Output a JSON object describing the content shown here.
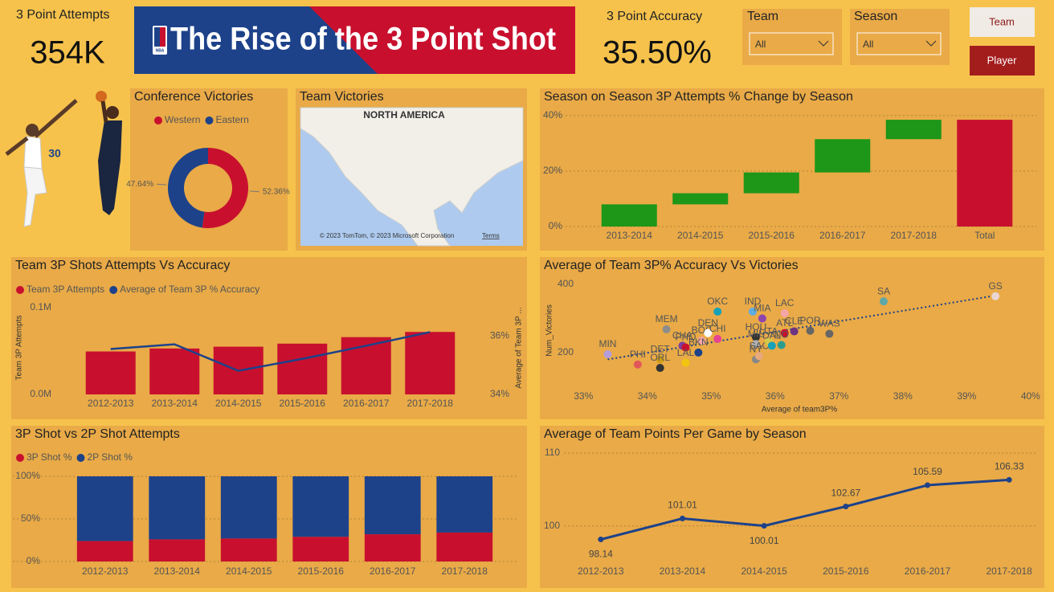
{
  "kpis": [
    {
      "label": "3 Point Attempts",
      "value": "354K"
    },
    {
      "label": "3 Point Accuracy",
      "value": "35.50%"
    }
  ],
  "banner": {
    "logo": "NBA",
    "title": "The Rise of the 3 Point Shot"
  },
  "slicers": [
    {
      "label": "Team",
      "selected": "All"
    },
    {
      "label": "Season",
      "selected": "All"
    }
  ],
  "buttons": [
    "Team",
    "Player"
  ],
  "chart_data": [
    {
      "type": "donut",
      "title": "Conference Victories",
      "categories": [
        "Western",
        "Eastern"
      ],
      "values": [
        52.36,
        47.64
      ],
      "value_labels": [
        "52.36%",
        "47.64%"
      ],
      "colors": [
        "#c8102e",
        "#1d428a"
      ],
      "legend": "top"
    },
    {
      "type": "map",
      "title": "Team Victories",
      "region_label": "NORTH AMERICA",
      "attribution": "© 2023 TomTom, © 2023 Microsoft Corporation",
      "terms": "Terms"
    },
    {
      "type": "waterfall",
      "title": "Season on Season 3P Attempts % Change by Season",
      "categories": [
        "2013-2014",
        "2014-2015",
        "2015-2016",
        "2016-2017",
        "2017-2018",
        "Total"
      ],
      "values": [
        8,
        4,
        7.5,
        12,
        7,
        38.5
      ],
      "increase_color": "#1e9618",
      "total_color": "#c8102e",
      "ylim": [
        0,
        42
      ],
      "yticks": [
        {
          "value": 0,
          "label": "0%"
        },
        {
          "value": 20,
          "label": "20%"
        },
        {
          "value": 40,
          "label": "40%"
        }
      ],
      "grid": true
    },
    {
      "type": "bar_line",
      "title": "Team 3P Shots Attempts Vs Accuracy",
      "categories": [
        "2012-2013",
        "2013-2014",
        "2014-2015",
        "2015-2016",
        "2016-2017",
        "2017-2018"
      ],
      "series": [
        {
          "name": "Team 3P Attempts",
          "color": "#c8102e",
          "values": [
            49500,
            52900,
            55000,
            58500,
            66000,
            72000
          ]
        },
        {
          "name": "Average of Team 3P % Accuracy",
          "color": "#1d428a",
          "values": [
            35.56,
            35.72,
            34.81,
            35.22,
            35.67,
            36.14
          ],
          "axis": "y2"
        }
      ],
      "ylabel": "Team 3P Attempts",
      "y2label": "Average of Team 3P ...",
      "ylim": [
        0,
        107400
      ],
      "yticks": [
        {
          "value": 0,
          "label": "0.0M"
        },
        {
          "value": 100000,
          "label": "0.1M"
        }
      ],
      "y2lim": [
        34,
        37.2
      ],
      "y2ticks": [
        {
          "value": 34,
          "label": "34%"
        },
        {
          "value": 36,
          "label": "36%"
        }
      ],
      "legend": "top-left",
      "grid": false
    },
    {
      "type": "scatter",
      "title": "Average of Team 3P% Accuracy Vs Victories",
      "xlabel": "Average of team3P%",
      "ylabel": "Num_Victories",
      "labels": [
        "MIN",
        "PHI",
        "DET",
        "ORL",
        "MEM",
        "CHA",
        "PHO",
        "BOS",
        "LAL",
        "BKN",
        "DEN",
        "CHI",
        "OKC",
        "IND",
        "MIA",
        "HOU",
        "MIL",
        "NY",
        "SAC",
        "UTA",
        "DAL",
        "LAC",
        "ATL",
        "CLE",
        "NO",
        "POR",
        "WAS",
        "SA",
        "GS"
      ],
      "x": [
        33.38,
        33.85,
        34.2,
        34.2,
        34.3,
        34.55,
        34.6,
        34.85,
        34.6,
        34.8,
        34.95,
        35.1,
        35.1,
        35.65,
        35.8,
        35.7,
        35.7,
        35.7,
        35.75,
        35.9,
        35.95,
        36.15,
        36.15,
        36.3,
        36.1,
        36.55,
        36.85,
        37.7,
        39.45
      ],
      "y": [
        195,
        165,
        180,
        155,
        268,
        220,
        215,
        235,
        170,
        200,
        257,
        240,
        320,
        320,
        300,
        245,
        225,
        180,
        190,
        232,
        220,
        315,
        257,
        262,
        222,
        264,
        255,
        350,
        365
      ],
      "colors": [
        "#b39ddb",
        "#e15759",
        "#d4a017",
        "#333333",
        "#8c8c8c",
        "#7b3fa0",
        "#c8102e",
        "#f4a6a6",
        "#f1c40f",
        "#1d428a",
        "#ffffff",
        "#e84393",
        "#17a2b8",
        "#5dade2",
        "#8e44ad",
        "#333333",
        "#b0b0b0",
        "#888888",
        "#e8a87c",
        "#d4c84a",
        "#17a2b8",
        "#f4a6a6",
        "#c8102e",
        "#6c3483",
        "#2a9d8f",
        "#666666",
        "#666666",
        "#5fa8a8",
        "#ead5d5"
      ],
      "trendline": {
        "x": [
          33.38,
          39.45
        ],
        "y": [
          180,
          367
        ],
        "color": "#1d428a"
      },
      "xlim": [
        32.67,
        40.09
      ],
      "xticks": [
        {
          "value": 33,
          "label": "33%"
        },
        {
          "value": 34,
          "label": "34%"
        },
        {
          "value": 35,
          "label": "35%"
        },
        {
          "value": 36,
          "label": "36%"
        },
        {
          "value": 37,
          "label": "37%"
        },
        {
          "value": 38,
          "label": "38%"
        },
        {
          "value": 39,
          "label": "39%"
        },
        {
          "value": 40,
          "label": "40%"
        }
      ],
      "ylim": [
        108,
        421
      ],
      "yticks": [
        200,
        400
      ],
      "grid": false
    },
    {
      "type": "stacked_bar",
      "title": "3P Shot vs 2P Shot Attempts",
      "categories": [
        "2012-2013",
        "2013-2014",
        "2014-2015",
        "2015-2016",
        "2016-2017",
        "2017-2018"
      ],
      "series": [
        {
          "name": "3P Shot %",
          "color": "#c8102e",
          "values": [
            24,
            26,
            27,
            29,
            32,
            34
          ]
        },
        {
          "name": "2P Shot %",
          "color": "#1d428a",
          "values": [
            76,
            74,
            73,
            71,
            68,
            66
          ]
        }
      ],
      "ylim": [
        0,
        100
      ],
      "yticks": [
        {
          "value": 0,
          "label": "0%"
        },
        {
          "value": 50,
          "label": "50%"
        },
        {
          "value": 100,
          "label": "100%"
        }
      ],
      "legend": "top-left",
      "grid": true
    },
    {
      "type": "line",
      "title": "Average of Team Points Per Game by Season",
      "categories": [
        "2012-2013",
        "2013-2014",
        "2014-2015",
        "2015-2016",
        "2016-2017",
        "2017-2018"
      ],
      "values": [
        98.14,
        101.01,
        100.01,
        102.67,
        105.59,
        106.33
      ],
      "color": "#1d428a",
      "ylim": [
        95,
        111
      ],
      "yticks": [
        100,
        110
      ],
      "grid": true
    }
  ]
}
